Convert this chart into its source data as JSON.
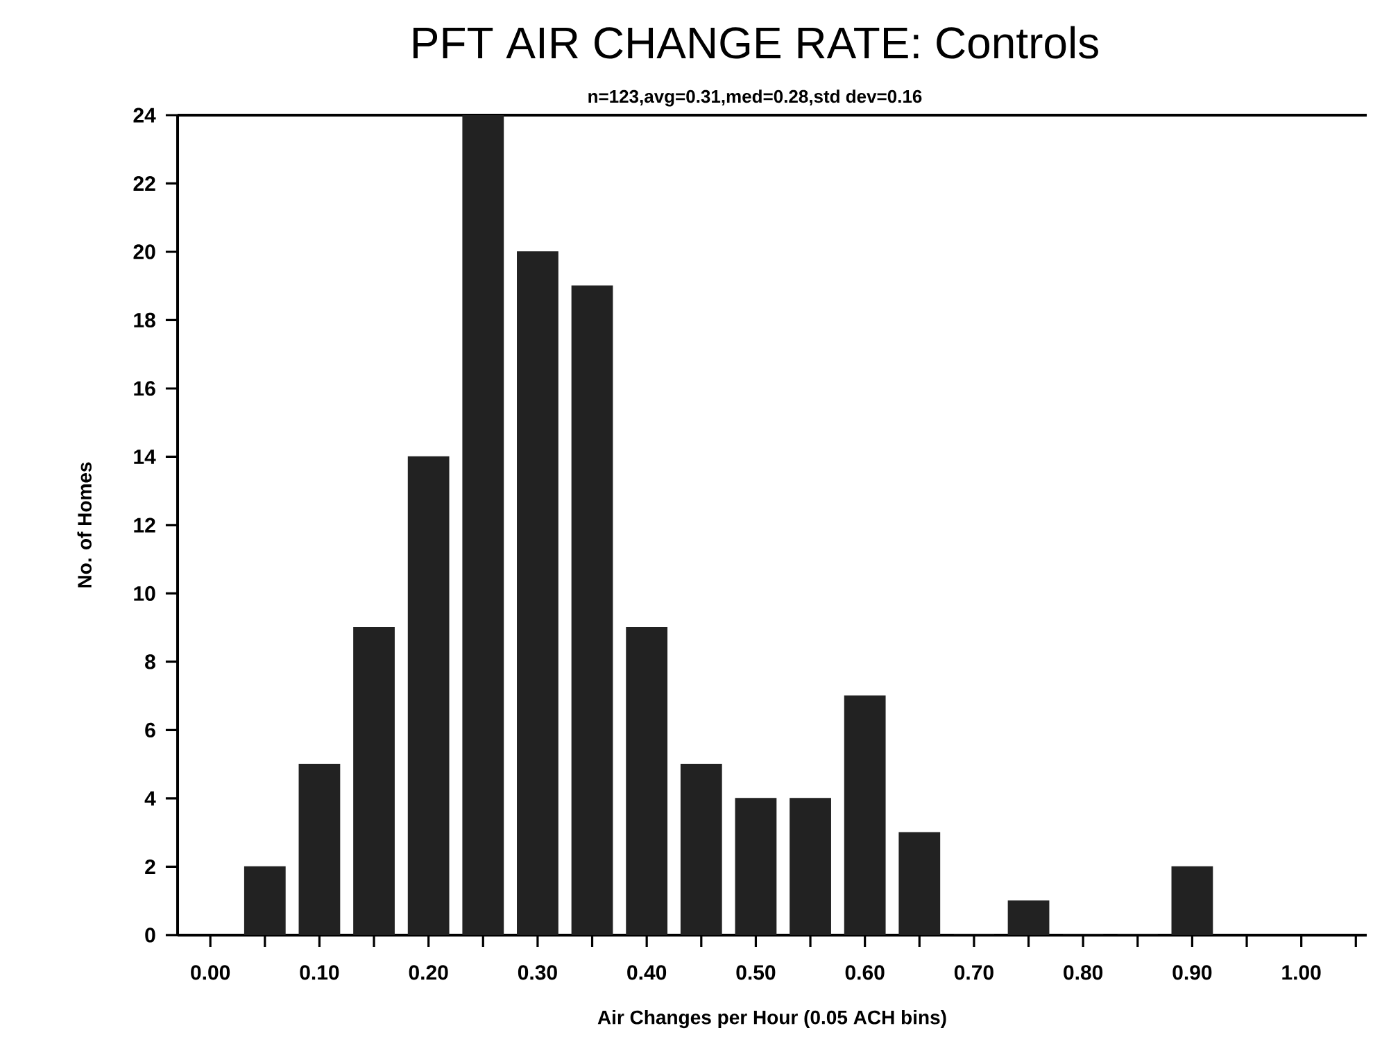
{
  "chart_data": {
    "type": "bar",
    "title": "PFT AIR CHANGE RATE: Controls",
    "subtitle": "n=123,avg=0.31,med=0.28,std dev=0.16",
    "xlabel": "Air Changes per Hour (0.05 ACH bins)",
    "ylabel": "No. of Homes",
    "x": [
      0.05,
      0.1,
      0.15,
      0.2,
      0.25,
      0.3,
      0.35,
      0.4,
      0.45,
      0.5,
      0.55,
      0.6,
      0.65,
      0.7,
      0.75,
      0.8,
      0.85,
      0.9
    ],
    "values": [
      2,
      5,
      9,
      14,
      24,
      20,
      19,
      9,
      5,
      4,
      4,
      7,
      3,
      0,
      1,
      0,
      0,
      2
    ],
    "color": "#222222",
    "grid": false,
    "xlim": [
      -0.03,
      1.06
    ],
    "ylim": [
      0,
      24
    ],
    "xticks": [
      {
        "value": 0,
        "label": "0.00"
      },
      {
        "value": 0.05,
        "label": null
      },
      {
        "value": 0.1,
        "label": "0.10"
      },
      {
        "value": 0.15,
        "label": null
      },
      {
        "value": 0.2,
        "label": "0.20"
      },
      {
        "value": 0.25,
        "label": null
      },
      {
        "value": 0.3,
        "label": "0.30"
      },
      {
        "value": 0.35,
        "label": null
      },
      {
        "value": 0.4,
        "label": "0.40"
      },
      {
        "value": 0.45,
        "label": null
      },
      {
        "value": 0.5,
        "label": "0.50"
      },
      {
        "value": 0.55,
        "label": null
      },
      {
        "value": 0.6,
        "label": "0.60"
      },
      {
        "value": 0.65,
        "label": null
      },
      {
        "value": 0.7,
        "label": "0.70"
      },
      {
        "value": 0.75,
        "label": null
      },
      {
        "value": 0.8,
        "label": "0.80"
      },
      {
        "value": 0.85,
        "label": null
      },
      {
        "value": 0.9,
        "label": "0.90"
      },
      {
        "value": 0.95,
        "label": null
      },
      {
        "value": 1.0,
        "label": "1.00"
      },
      {
        "value": 1.05,
        "label": null
      }
    ],
    "yticks": [
      0,
      2,
      4,
      6,
      8,
      10,
      12,
      14,
      16,
      18,
      20,
      22,
      24
    ]
  }
}
